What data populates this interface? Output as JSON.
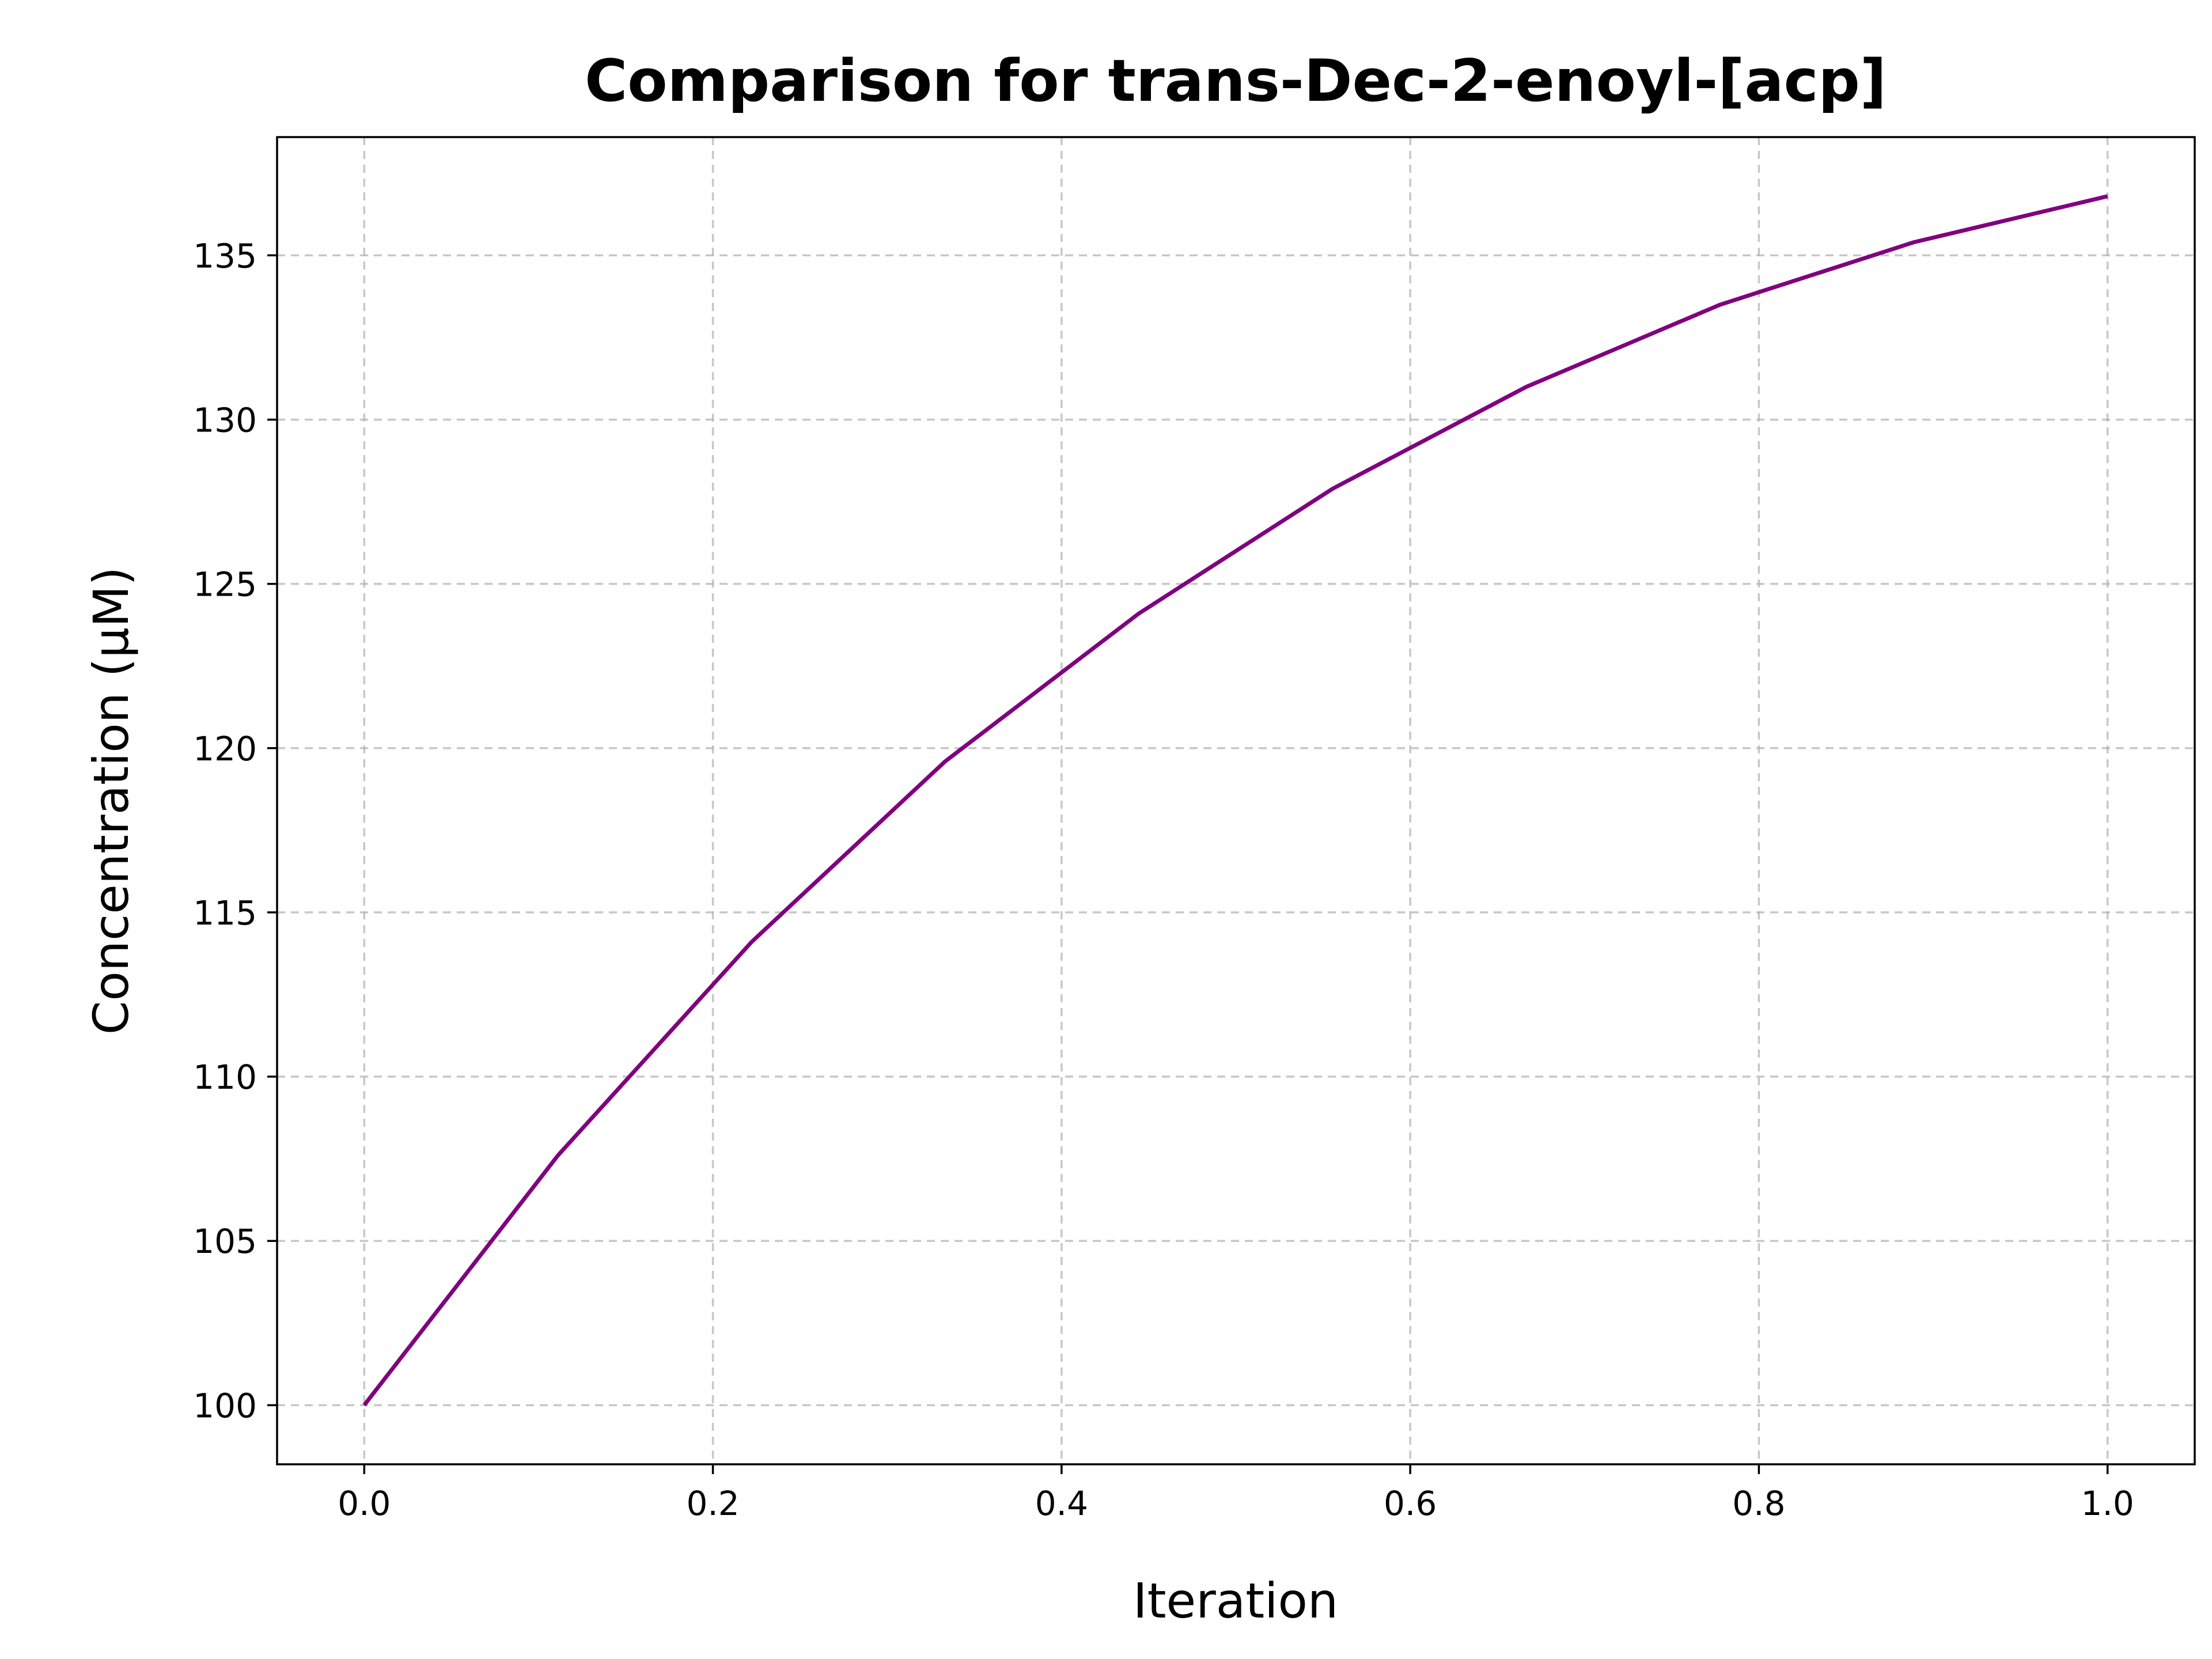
{
  "chart_data": {
    "type": "line",
    "title": "Comparison for trans-Dec-2-enoyl-[acp]",
    "xlabel": "Iteration",
    "ylabel": "Concentration (μM)",
    "xlim": [
      -0.05,
      1.05
    ],
    "ylim": [
      98.2,
      138.6
    ],
    "xticks": [
      0.0,
      0.2,
      0.4,
      0.6,
      0.8,
      1.0
    ],
    "xtick_labels": [
      "0.0",
      "0.2",
      "0.4",
      "0.6",
      "0.8",
      "1.0"
    ],
    "yticks": [
      100,
      105,
      110,
      115,
      120,
      125,
      130,
      135
    ],
    "ytick_labels": [
      "100",
      "105",
      "110",
      "115",
      "120",
      "125",
      "130",
      "135"
    ],
    "grid": true,
    "series": [
      {
        "color": "#800080",
        "x": [
          0.0,
          0.1111,
          0.2222,
          0.3333,
          0.4444,
          0.5556,
          0.6667,
          0.7778,
          0.8889,
          1.0
        ],
        "y": [
          100.0,
          107.6,
          114.1,
          119.6,
          124.1,
          127.9,
          131.0,
          133.5,
          135.4,
          136.8
        ]
      }
    ]
  }
}
